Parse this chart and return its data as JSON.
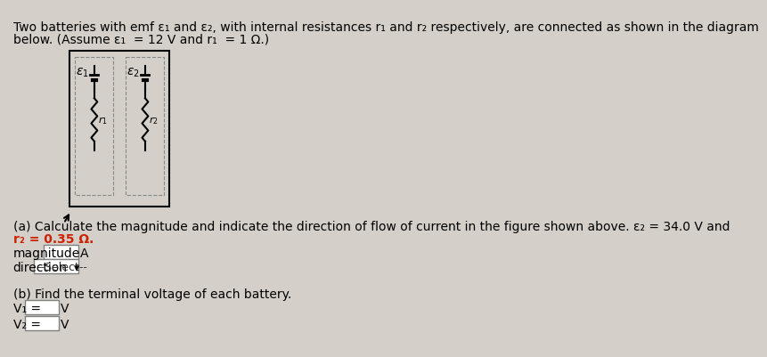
{
  "bg_color": "#d4cfc9",
  "title_line1": "Two batteries with emf ε₁ and ε₂, with internal resistances r₁ and r₂ respectively, are connected as shown in the diagram",
  "title_line2": "below. (Assume ε₁  = 12 V and r₁  = 1 Ω.)",
  "part_a": "(a) Calculate the magnitude and indicate the direction of flow of current in the figure shown above. ε₂ = 34.0 V and",
  "part_a2": "r₂ = 0.35 Ω.",
  "part_a2_color": "#cc2200",
  "magnitude_label": "magnitude",
  "magnitude_unit": "A",
  "direction_label": "direction",
  "direction_placeholder": "--Select--",
  "part_b": "(b) Find the terminal voltage of each battery.",
  "v1_label": "V₁ =",
  "v2_label": "V₂ =",
  "v_unit": "V",
  "font_size_body": 10,
  "font_size_small": 9
}
